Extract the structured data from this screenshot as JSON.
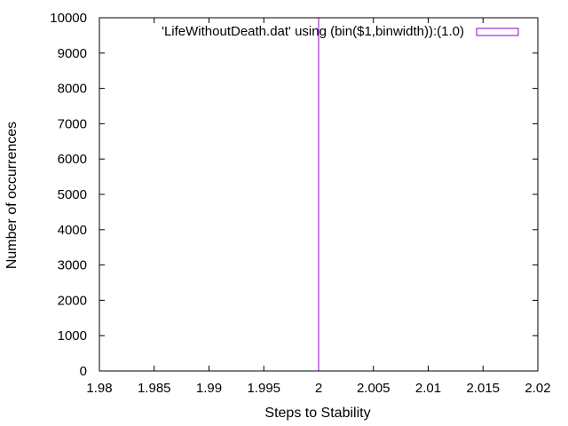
{
  "chart_data": {
    "type": "bar",
    "xlabel": "Steps to Stability",
    "ylabel": "Number of occurrences",
    "xlim": [
      1.98,
      2.02
    ],
    "ylim": [
      0,
      10000
    ],
    "x_ticks": [
      "1.98",
      "1.985",
      "1.99",
      "1.995",
      "2",
      "2.005",
      "2.01",
      "2.015",
      "2.02"
    ],
    "y_ticks": [
      "0",
      "1000",
      "2000",
      "3000",
      "4000",
      "5000",
      "6000",
      "7000",
      "8000",
      "9000",
      "10000"
    ],
    "grid": false,
    "legend_position": "top-right",
    "series": [
      {
        "name": "'LifeWithoutDeath.dat' using (bin($1,binwidth)):(1.0)",
        "color": "#9400d3",
        "x": [
          2
        ],
        "values": [
          10000
        ]
      }
    ]
  }
}
